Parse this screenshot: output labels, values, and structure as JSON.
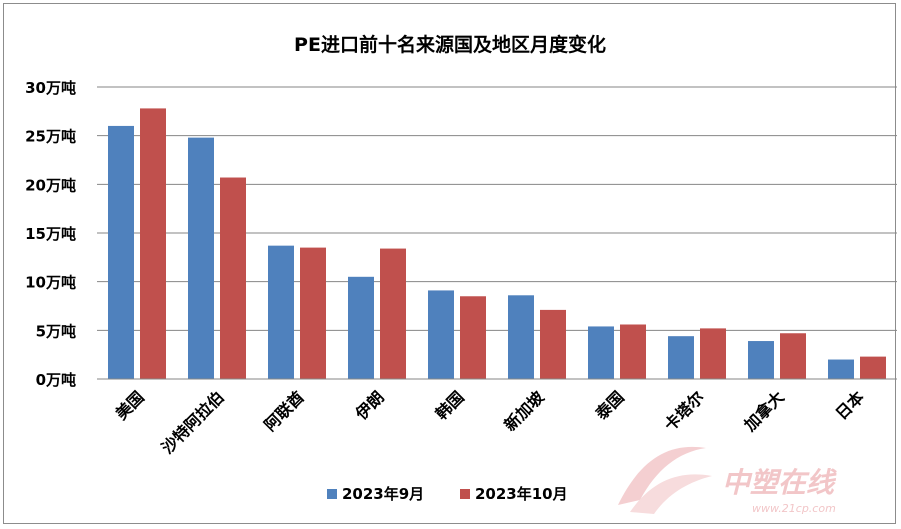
{
  "chart_data": {
    "type": "bar",
    "title": "PE进口前十名来源国及地区月度变化",
    "categories": [
      "美国",
      "沙特阿拉伯",
      "阿联酋",
      "伊朗",
      "韩国",
      "新加坡",
      "泰国",
      "卡塔尔",
      "加拿大",
      "日本"
    ],
    "series": [
      {
        "name": "2023年9月",
        "color": "#4f81bd",
        "values": [
          26.0,
          24.8,
          13.7,
          10.5,
          9.1,
          8.6,
          5.4,
          4.4,
          3.9,
          2.0
        ]
      },
      {
        "name": "2023年10月",
        "color": "#c0504d",
        "values": [
          27.8,
          20.7,
          13.5,
          13.4,
          8.5,
          7.1,
          5.6,
          5.2,
          4.7,
          2.3
        ]
      }
    ],
    "y_ticks": [
      "0万吨",
      "5万吨",
      "10万吨",
      "15万吨",
      "20万吨",
      "25万吨",
      "30万吨"
    ],
    "ylim": [
      0,
      30
    ],
    "grid": true,
    "legend_position": "bottom"
  },
  "watermark": {
    "text": "中塑在线",
    "url_text": "www.21cp.com"
  }
}
